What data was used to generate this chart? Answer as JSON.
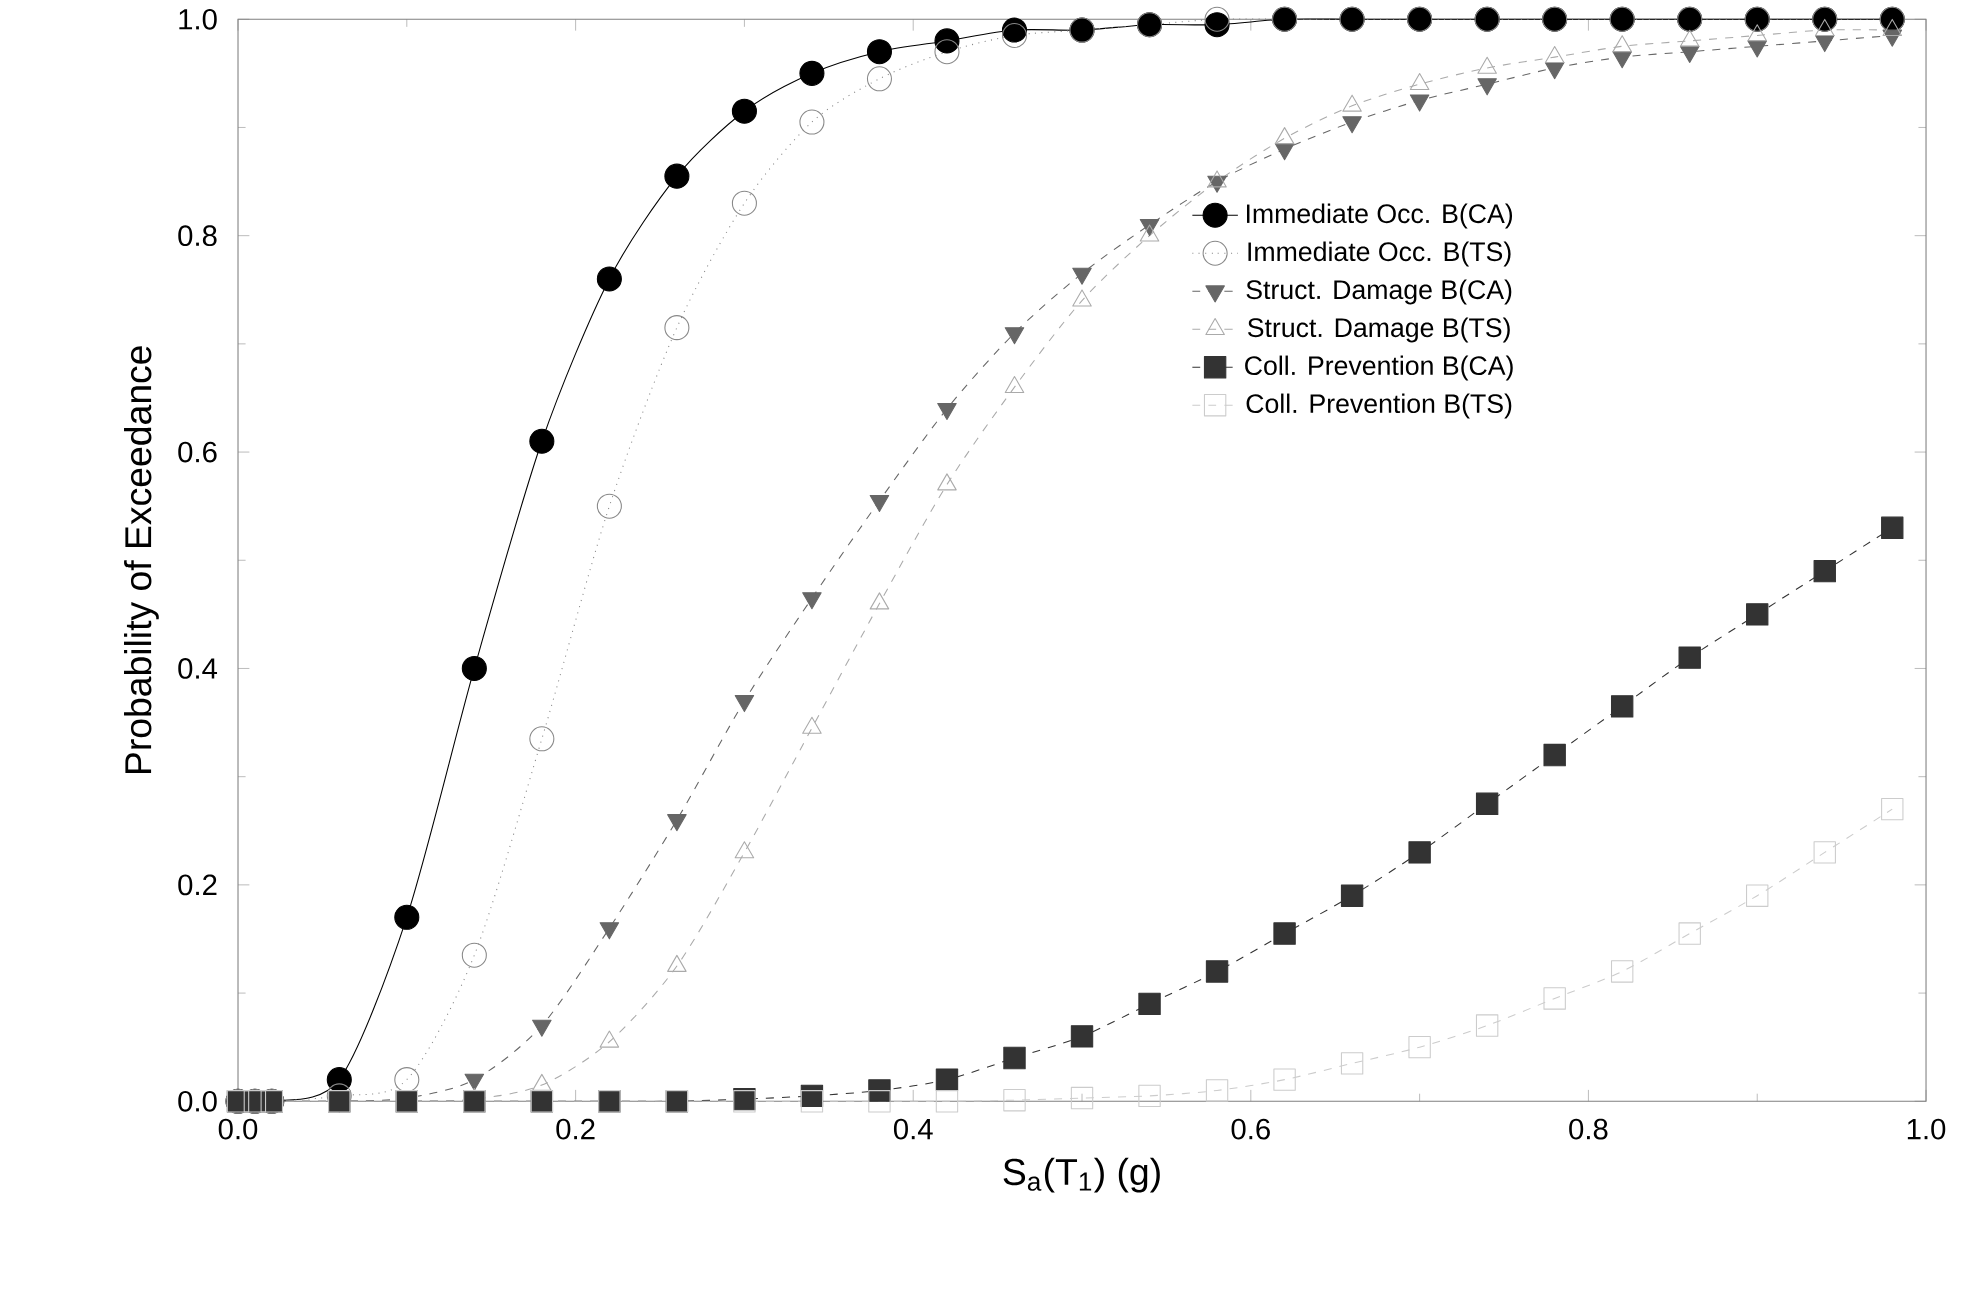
{
  "chart_data": {
    "type": "line",
    "xlabel": "S$_{a}$(T$_{1}$) (g)",
    "ylabel": "Probability of Exceedance",
    "x": [
      0,
      0.01,
      0.02,
      0.06,
      0.1,
      0.14,
      0.18,
      0.22,
      0.26,
      0.3,
      0.34,
      0.38,
      0.42,
      0.46,
      0.5,
      0.54,
      0.58,
      0.62,
      0.66,
      0.7,
      0.74,
      0.78,
      0.82,
      0.86,
      0.9,
      0.94,
      0.98
    ],
    "series": [
      {
        "name": "Immediate Occ. B(CA)",
        "color": "#000000",
        "marker": "circle",
        "line_style": "solid",
        "values": [
          0,
          0,
          0,
          0.02,
          0.17,
          0.4,
          0.61,
          0.76,
          0.855,
          0.915,
          0.95,
          0.97,
          0.98,
          0.99,
          0.99,
          0.995,
          0.995,
          1,
          1,
          1,
          1,
          1,
          1,
          1,
          1,
          1,
          1
        ]
      },
      {
        "name": "Immediate Occ. B(TS)",
        "color": "#888888",
        "marker": "circle",
        "line_style": "dotted",
        "values": [
          0,
          0,
          0,
          0.005,
          0.02,
          0.135,
          0.335,
          0.55,
          0.715,
          0.83,
          0.905,
          0.945,
          0.97,
          0.985,
          0.99,
          0.995,
          1,
          1,
          1,
          1,
          1,
          1,
          1,
          1,
          1,
          1,
          1
        ]
      },
      {
        "name": "Struct. Damage B(CA)",
        "color": "#666666",
        "marker": "triangle",
        "line_style": "dashed",
        "values": [
          0,
          0,
          0,
          0,
          0.003,
          0.02,
          0.07,
          0.16,
          0.26,
          0.37,
          0.465,
          0.555,
          0.64,
          0.71,
          0.765,
          0.81,
          0.85,
          0.88,
          0.905,
          0.925,
          0.94,
          0.955,
          0.965,
          0.97,
          0.975,
          0.98,
          0.985
        ]
      },
      {
        "name": "Struct. Damage B(TS)",
        "color": "#aaaaaa",
        "marker": "triangle",
        "line_style": "dashed",
        "values": [
          0,
          0,
          0,
          0,
          0,
          0.002,
          0.015,
          0.055,
          0.125,
          0.23,
          0.345,
          0.46,
          0.57,
          0.66,
          0.74,
          0.8,
          0.85,
          0.89,
          0.92,
          0.94,
          0.955,
          0.965,
          0.975,
          0.98,
          0.985,
          0.99,
          0.99
        ]
      },
      {
        "name": "Coll. Prevention B(CA)",
        "color": "#333333",
        "marker": "square",
        "line_style": "dashed",
        "values": [
          0,
          0,
          0,
          0,
          0,
          0,
          0,
          0,
          0,
          0.002,
          0.005,
          0.01,
          0.02,
          0.04,
          0.06,
          0.09,
          0.12,
          0.155,
          0.19,
          0.23,
          0.275,
          0.32,
          0.365,
          0.41,
          0.45,
          0.49,
          0.53
        ]
      },
      {
        "name": "Coll. Prevention B(TS)",
        "color": "#cccccc",
        "marker": "square",
        "line_style": "dashed",
        "values": [
          0,
          0,
          0,
          0,
          0,
          0,
          0,
          0,
          0,
          0,
          0,
          0,
          0,
          0.001,
          0.003,
          0.005,
          0.01,
          0.02,
          0.035,
          0.05,
          0.07,
          0.095,
          0.12,
          0.155,
          0.19,
          0.23,
          0.27
        ]
      }
    ],
    "xlim": [
      0,
      1
    ],
    "ylim": [
      0,
      1
    ],
    "xticks": [
      {
        "value": 0,
        "label": "0.0"
      },
      {
        "value": 0.2,
        "label": "0.2"
      },
      {
        "value": 0.4,
        "label": "0.4"
      },
      {
        "value": 0.6,
        "label": "0.6"
      },
      {
        "value": 0.8,
        "label": "0.8"
      },
      {
        "value": 1,
        "label": "1.0"
      }
    ],
    "yticks": [
      {
        "value": 0,
        "label": "0.0"
      },
      {
        "value": 0.2,
        "label": "0.2"
      },
      {
        "value": 0.4,
        "label": "0.4"
      },
      {
        "value": 0.6,
        "label": "0.6"
      },
      {
        "value": 0.8,
        "label": "0.8"
      },
      {
        "value": 1,
        "label": "1.0"
      }
    ],
    "grid": false,
    "legend": "right"
  }
}
